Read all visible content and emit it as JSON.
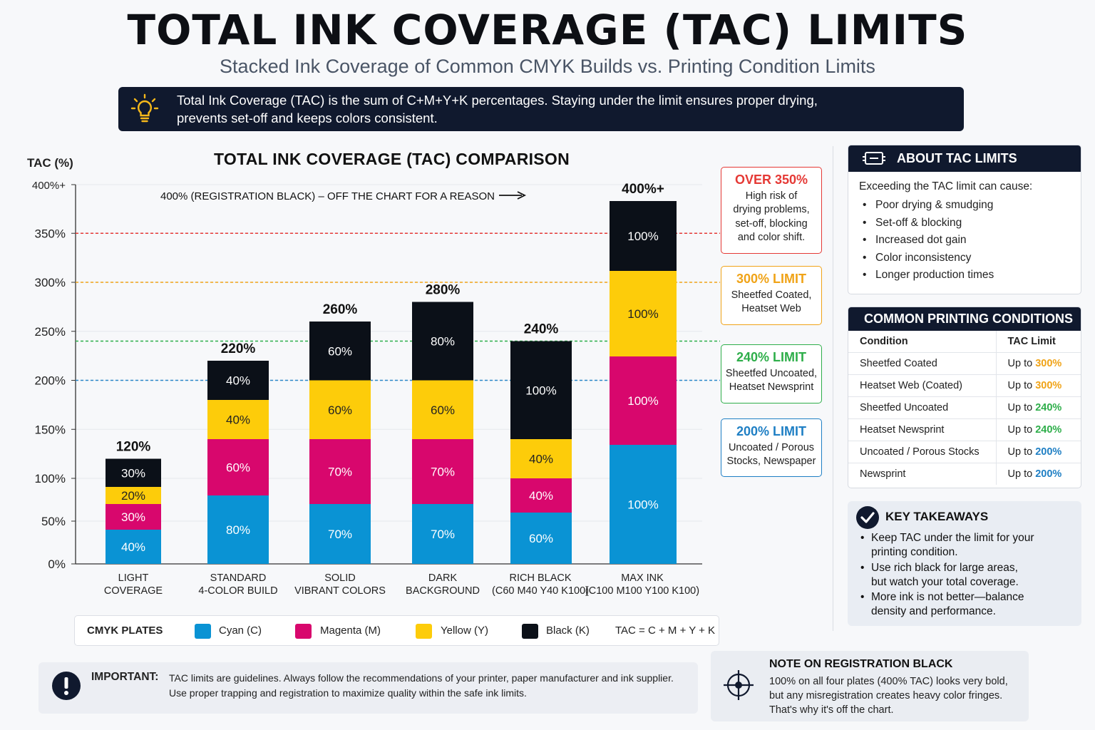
{
  "header": {
    "title": "TOTAL INK COVERAGE (TAC) LIMITS",
    "subtitle": "Stacked Ink Coverage of Common CMYK Builds vs. Printing Condition Limits",
    "info_line1": "Total Ink Coverage (TAC) is the sum of C+M+Y+K percentages.  Staying under the limit ensures proper drying,",
    "info_line2": "prevents set-off and keeps colors consistent."
  },
  "chart_data": {
    "type": "bar",
    "stacked": true,
    "title": "TOTAL INK COVERAGE (TAC) COMPARISON",
    "ylabel": "TAC (%)",
    "ylim": [
      0,
      400
    ],
    "yticks": [
      "0%",
      "50%",
      "100%",
      "150%",
      "200%",
      "250%",
      "300%",
      "350%",
      "400%+"
    ],
    "categories": [
      [
        "LIGHT",
        "COVERAGE"
      ],
      [
        "STANDARD",
        "4-COLOR BUILD"
      ],
      [
        "SOLID",
        "VIBRANT COLORS"
      ],
      [
        "DARK",
        "BACKGROUND"
      ],
      [
        "RICH BLACK",
        "(C60 M40 Y40 K100)"
      ],
      [
        "MAX INK",
        "(C100 M100 Y100 K100)"
      ]
    ],
    "totals": [
      "120%",
      "220%",
      "260%",
      "280%",
      "240%",
      "400%+"
    ],
    "series": [
      {
        "name": "Cyan (C)",
        "color": "#0a93d4",
        "values": [
          40,
          80,
          70,
          70,
          60,
          100
        ]
      },
      {
        "name": "Magenta (M)",
        "color": "#d8076d",
        "values": [
          30,
          60,
          70,
          70,
          40,
          100
        ]
      },
      {
        "name": "Yellow (Y)",
        "color": "#fdcc0a",
        "values": [
          20,
          40,
          60,
          60,
          40,
          100
        ]
      },
      {
        "name": "Black (K)",
        "color": "#0b1018",
        "values": [
          30,
          40,
          60,
          80,
          100,
          100
        ]
      }
    ],
    "limit_lines": [
      {
        "value": 350,
        "color": "#e53935"
      },
      {
        "value": 300,
        "color": "#f0a317"
      },
      {
        "value": 240,
        "color": "#2eae4a"
      },
      {
        "value": 200,
        "color": "#2a87c8"
      }
    ],
    "annotation": "400% (REGISTRATION BLACK) – OFF THE CHART FOR A REASON",
    "grid": true
  },
  "limit_boxes": [
    {
      "title": "OVER 350%",
      "lines": [
        "High risk of",
        "drying problems,",
        "set-off, blocking",
        "and color shift."
      ],
      "color": "#e53935"
    },
    {
      "title": "300% LIMIT",
      "lines": [
        "Sheetfed Coated,",
        "Heatset Web"
      ],
      "color": "#f0a317"
    },
    {
      "title": "240% LIMIT",
      "lines": [
        "Sheetfed Uncoated,",
        "Heatset Newsprint"
      ],
      "color": "#2eae4a"
    },
    {
      "title": "200% LIMIT",
      "lines": [
        "Uncoated / Porous",
        "Stocks, Newspaper"
      ],
      "color": "#1f7fc4"
    }
  ],
  "about": {
    "title": "ABOUT TAC LIMITS",
    "intro": "Exceeding the TAC limit can cause:",
    "items": [
      "Poor drying & smudging",
      "Set-off & blocking",
      "Increased dot gain",
      "Color inconsistency",
      "Longer production times"
    ]
  },
  "conditions": {
    "title": "COMMON PRINTING CONDITIONS",
    "col1": "Condition",
    "col2": "TAC Limit",
    "prefix": "Up to",
    "rows": [
      {
        "condition": "Sheetfed Coated",
        "limit": "300%",
        "color": "#f0a317"
      },
      {
        "condition": "Heatset Web (Coated)",
        "limit": "300%",
        "color": "#f0a317"
      },
      {
        "condition": "Sheetfed Uncoated",
        "limit": "240%",
        "color": "#2eae4a"
      },
      {
        "condition": "Heatset Newsprint",
        "limit": "240%",
        "color": "#2eae4a"
      },
      {
        "condition": "Uncoated / Porous Stocks",
        "limit": "200%",
        "color": "#1f7fc4"
      },
      {
        "condition": "Newsprint",
        "limit": "200%",
        "color": "#1f7fc4"
      }
    ]
  },
  "takeaways": {
    "title": "KEY TAKEAWAYS",
    "items": [
      [
        "Keep TAC under the limit for your",
        "printing condition."
      ],
      [
        "Use rich black for large areas,",
        "but watch your total coverage."
      ],
      [
        "More ink is not better—balance",
        "density and performance."
      ]
    ]
  },
  "legend": {
    "title": "CMYK PLATES",
    "items": [
      {
        "label": "Cyan (C)",
        "color": "#0a93d4"
      },
      {
        "label": "Magenta (M)",
        "color": "#d8076d"
      },
      {
        "label": "Yellow (Y)",
        "color": "#fdcc0a"
      },
      {
        "label": "Black (K)",
        "color": "#0b1018"
      }
    ],
    "formula": "TAC = C + M + Y + K"
  },
  "important": {
    "label": "IMPORTANT:",
    "line1": "TAC limits are guidelines.  Always follow the recommendations of your printer, paper manufacturer and ink supplier.",
    "line2": "Use proper trapping and registration to maximize quality within the safe ink limits."
  },
  "note": {
    "title": "NOTE ON REGISTRATION BLACK",
    "lines": [
      "100% on all four plates (400% TAC) looks very bold,",
      "but any misregistration creates heavy color fringes.",
      "That's why it's off the chart."
    ]
  }
}
